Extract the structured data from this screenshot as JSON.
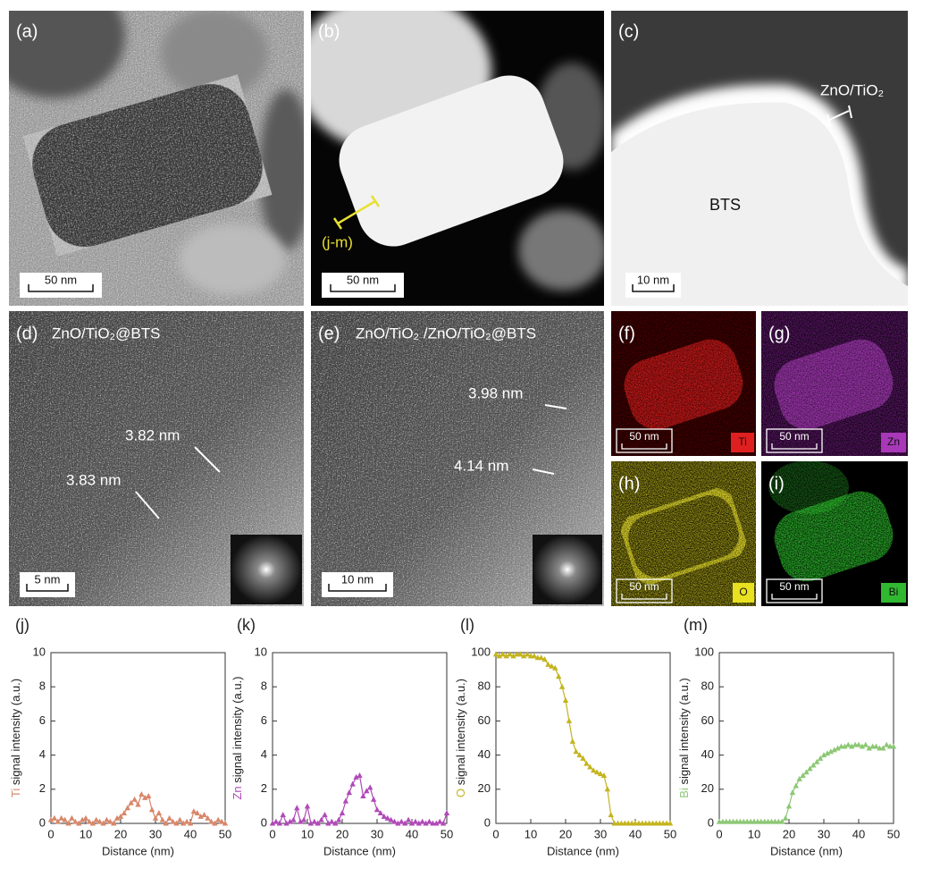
{
  "images": [
    {
      "label": "(a)",
      "scale_bar": "50 nm"
    },
    {
      "label": "(b)",
      "scale_bar": "50 nm",
      "line_label": "(j-m)"
    },
    {
      "label": "(c)",
      "scale_bar": "10 nm",
      "shell": "ZnO/TiO₂",
      "core": "BTS"
    },
    {
      "label": "(d)",
      "scale_bar": "5 nm",
      "title": "ZnO/TiO₂@BTS",
      "thickness": [
        "3.82 nm",
        "3.83 nm"
      ]
    },
    {
      "label": "(e)",
      "scale_bar": "10 nm",
      "title": "ZnO/TiO₂ /ZnO/TiO₂@BTS",
      "thickness": [
        "3.98 nm",
        "4.14 nm"
      ]
    },
    {
      "label": "(f)",
      "scale_bar": "50 nm",
      "element": "Ti"
    },
    {
      "label": "(g)",
      "scale_bar": "50 nm",
      "element": "Zn"
    },
    {
      "label": "(h)",
      "scale_bar": "50 nm",
      "element": "O"
    },
    {
      "label": "(i)",
      "scale_bar": "50 nm",
      "element": "Bi"
    }
  ],
  "chart_data": [
    {
      "type": "line",
      "label": "(j)",
      "xlabel": "Distance (nm)",
      "ylabel_element": "Ti",
      "ylabel": "signal intensity (a.u.)",
      "color": "#d8876a",
      "xlim": [
        0,
        50
      ],
      "xticks": [
        0,
        10,
        20,
        30,
        40,
        50
      ],
      "ylim": [
        0,
        10
      ],
      "yticks": [
        0,
        2,
        4,
        6,
        8,
        10
      ],
      "x": [
        0,
        1,
        2,
        3,
        4,
        5,
        6,
        7,
        8,
        9,
        10,
        11,
        12,
        13,
        14,
        15,
        16,
        17,
        18,
        19,
        20,
        21,
        22,
        23,
        24,
        25,
        26,
        27,
        28,
        29,
        30,
        31,
        32,
        33,
        34,
        35,
        36,
        37,
        38,
        39,
        40,
        41,
        42,
        43,
        44,
        45,
        46,
        47,
        48,
        49,
        50
      ],
      "values": [
        0.2,
        0.3,
        0.1,
        0.3,
        0.2,
        0,
        0.3,
        0.1,
        0,
        0.2,
        0.3,
        0.1,
        0,
        0.2,
        0.1,
        0,
        0.2,
        0.1,
        0,
        0.3,
        0.4,
        0.6,
        0.9,
        1.2,
        1.4,
        1.1,
        1.7,
        1.5,
        1.6,
        0.8,
        0.3,
        0.6,
        0.2,
        0,
        0.3,
        0.1,
        0,
        0.2,
        0,
        0.1,
        0,
        0.7,
        0.6,
        0.4,
        0.5,
        0.3,
        0.1,
        0,
        0.2,
        0.1,
        0
      ]
    },
    {
      "type": "line",
      "label": "(k)",
      "xlabel": "Distance (nm)",
      "ylabel_element": "Zn",
      "ylabel": "signal intensity (a.u.)",
      "color": "#b04ab8",
      "xlim": [
        0,
        50
      ],
      "xticks": [
        0,
        10,
        20,
        30,
        40,
        50
      ],
      "ylim": [
        0,
        10
      ],
      "yticks": [
        0,
        2,
        4,
        6,
        8,
        10
      ],
      "x": [
        0,
        1,
        2,
        3,
        4,
        5,
        6,
        7,
        8,
        9,
        10,
        11,
        12,
        13,
        14,
        15,
        16,
        17,
        18,
        19,
        20,
        21,
        22,
        23,
        24,
        25,
        26,
        27,
        28,
        29,
        30,
        31,
        32,
        33,
        34,
        35,
        36,
        37,
        38,
        39,
        40,
        41,
        42,
        43,
        44,
        45,
        46,
        47,
        48,
        49,
        50
      ],
      "values": [
        0,
        0.1,
        0,
        0.5,
        0,
        0.1,
        0.2,
        0.9,
        0.1,
        0.2,
        1.0,
        0,
        0.1,
        0,
        0.2,
        0.5,
        0,
        0.1,
        0,
        0.2,
        0.6,
        1.3,
        1.8,
        2.3,
        2.7,
        2.8,
        1.6,
        1.9,
        2.1,
        1.4,
        0.8,
        0.6,
        0.4,
        0.3,
        0.2,
        0.1,
        0,
        0.1,
        0,
        0.2,
        0,
        0.1,
        0,
        0.1,
        0,
        0.1,
        0,
        0,
        0.1,
        0,
        0.6
      ]
    },
    {
      "type": "line",
      "label": "(l)",
      "xlabel": "Distance (nm)",
      "ylabel_element": "O",
      "ylabel": "signal intensity (a.u.)",
      "color": "#c4b41e",
      "xlim": [
        0,
        50
      ],
      "xticks": [
        0,
        10,
        20,
        30,
        40,
        50
      ],
      "ylim": [
        0,
        100
      ],
      "yticks": [
        0,
        20,
        40,
        60,
        80,
        100
      ],
      "x": [
        0,
        1,
        2,
        3,
        4,
        5,
        6,
        7,
        8,
        9,
        10,
        11,
        12,
        13,
        14,
        15,
        16,
        17,
        18,
        19,
        20,
        21,
        22,
        23,
        24,
        25,
        26,
        27,
        28,
        29,
        30,
        31,
        32,
        33,
        34,
        35,
        36,
        37,
        38,
        39,
        40,
        41,
        42,
        43,
        44,
        45,
        46,
        47,
        48,
        49,
        50
      ],
      "values": [
        99,
        98,
        99,
        98,
        99,
        98,
        99,
        99,
        98,
        99,
        98,
        98,
        97,
        97,
        96,
        93,
        92,
        91,
        86,
        80,
        72,
        60,
        48,
        42,
        40,
        38,
        35,
        33,
        31,
        30,
        29,
        28,
        20,
        5,
        0,
        0,
        0,
        0,
        0,
        0,
        0,
        0,
        0,
        0,
        0,
        0,
        0,
        0,
        0,
        0,
        0
      ]
    },
    {
      "type": "line",
      "label": "(m)",
      "xlabel": "Distance (nm)",
      "ylabel_element": "Bi",
      "ylabel": "signal intensity (a.u.)",
      "color": "#8dc775",
      "xlim": [
        0,
        50
      ],
      "xticks": [
        0,
        10,
        20,
        30,
        40,
        50
      ],
      "ylim": [
        0,
        100
      ],
      "yticks": [
        0,
        20,
        40,
        60,
        80,
        100
      ],
      "x": [
        0,
        1,
        2,
        3,
        4,
        5,
        6,
        7,
        8,
        9,
        10,
        11,
        12,
        13,
        14,
        15,
        16,
        17,
        18,
        19,
        20,
        21,
        22,
        23,
        24,
        25,
        26,
        27,
        28,
        29,
        30,
        31,
        32,
        33,
        34,
        35,
        36,
        37,
        38,
        39,
        40,
        41,
        42,
        43,
        44,
        45,
        46,
        47,
        48,
        49,
        50
      ],
      "values": [
        1,
        1,
        1,
        1,
        1,
        1,
        1,
        1,
        1,
        1,
        1,
        1,
        1,
        1,
        1,
        1,
        1,
        1,
        1,
        3,
        10,
        18,
        22,
        26,
        28,
        30,
        32,
        34,
        36,
        38,
        40,
        41,
        42,
        43,
        44,
        45,
        45,
        46,
        45,
        46,
        46,
        45,
        46,
        44,
        45,
        45,
        44,
        44,
        46,
        45,
        45
      ]
    }
  ]
}
